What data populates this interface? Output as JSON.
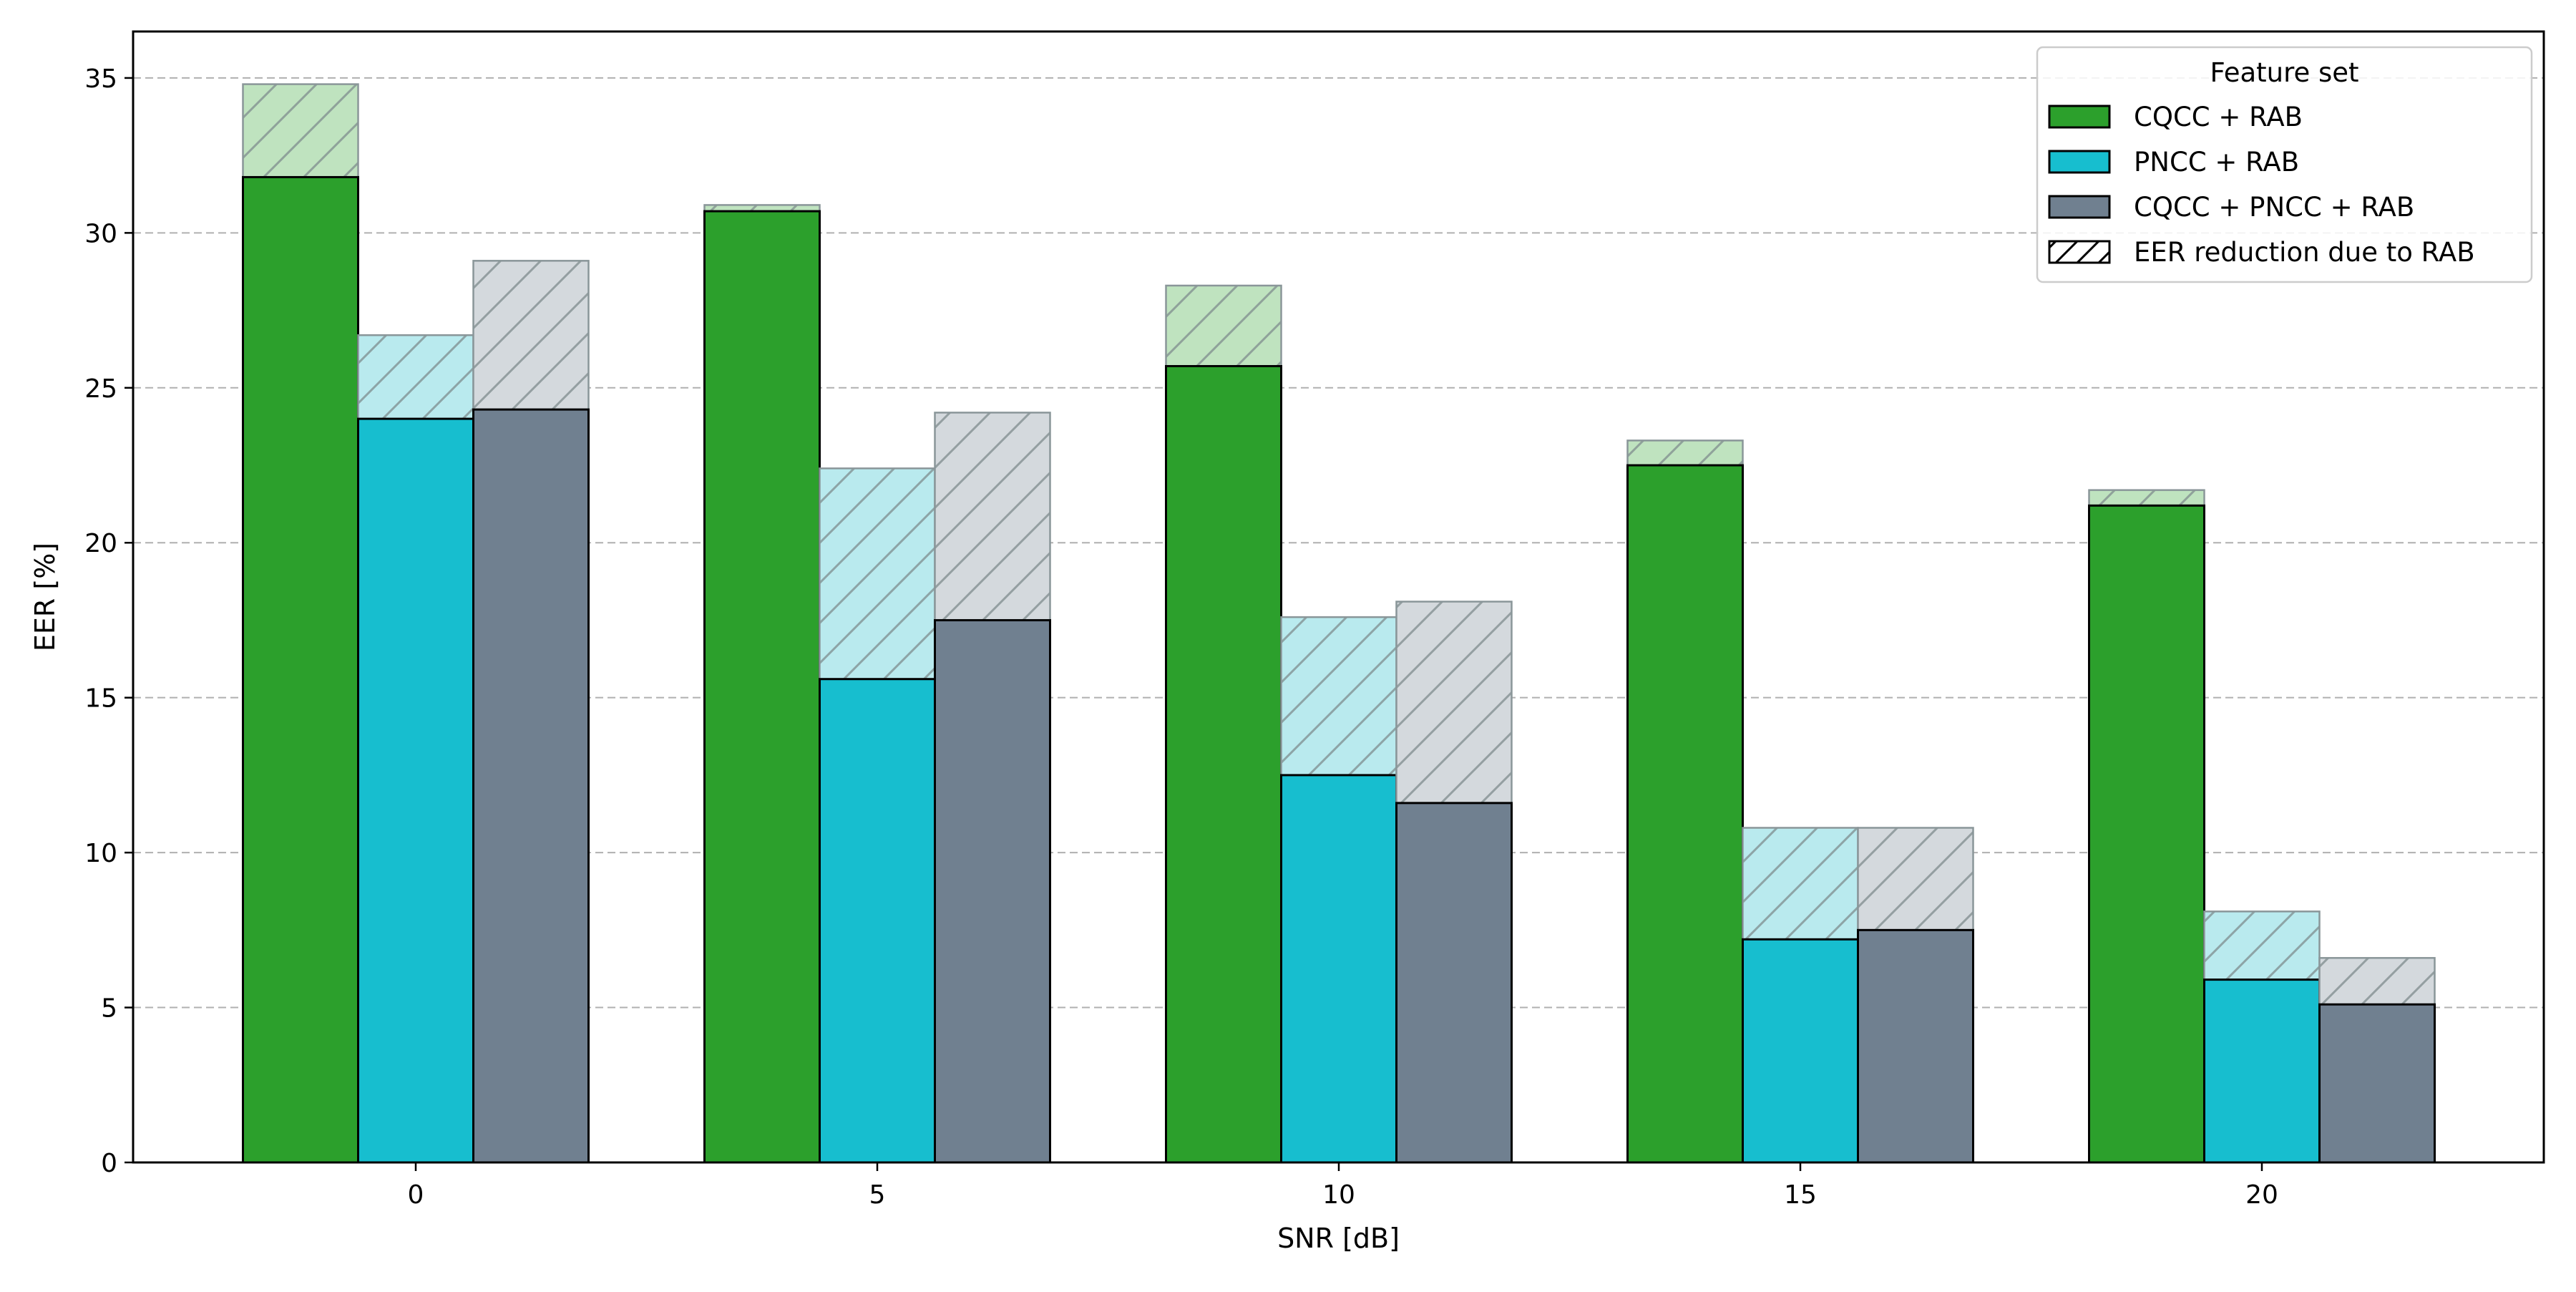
{
  "chart_data": {
    "type": "bar",
    "title": "",
    "xlabel": "SNR [dB]",
    "ylabel": "EER [%]",
    "categories": [
      "0",
      "5",
      "10",
      "15",
      "20"
    ],
    "ylim": [
      0,
      36.5
    ],
    "yticks": [
      0,
      5,
      10,
      15,
      20,
      25,
      30,
      35
    ],
    "grid": {
      "axis": "y",
      "style": "dashed"
    },
    "legend": {
      "title": "Feature set",
      "placement": "top-right",
      "hatch_label": "EER reduction due to RAB"
    },
    "series": [
      {
        "name": "CQCC + RAB",
        "color": "#2ca02c",
        "light_color": "#bfe3bf",
        "values": [
          31.8,
          30.7,
          25.7,
          22.5,
          21.2
        ],
        "without_rab": [
          34.8,
          30.9,
          28.3,
          23.3,
          21.7
        ]
      },
      {
        "name": "PNCC + RAB",
        "color": "#17becf",
        "light_color": "#b9eaee",
        "values": [
          24.0,
          15.6,
          12.5,
          7.2,
          5.9
        ],
        "without_rab": [
          26.7,
          22.4,
          17.6,
          10.8,
          8.1
        ]
      },
      {
        "name": "CQCC + PNCC + RAB",
        "color": "#708090",
        "light_color": "#d4d9dd",
        "values": [
          24.3,
          17.5,
          11.6,
          7.5,
          5.1
        ],
        "without_rab": [
          29.1,
          24.2,
          18.1,
          10.8,
          6.6
        ]
      }
    ]
  }
}
